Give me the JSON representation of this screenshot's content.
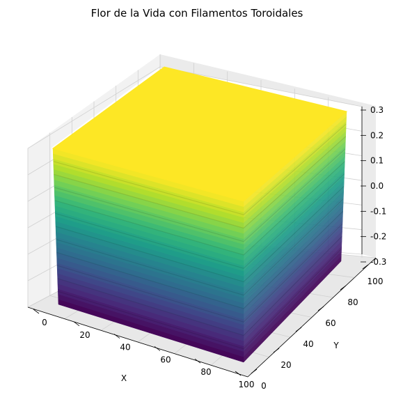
{
  "chart_data": {
    "type": "scatter",
    "projection": "3d",
    "title": "Flor de la Vida con Filamentos Toroidales",
    "xlabel": "X",
    "ylabel": "Y",
    "zlabel": "",
    "xlim": [
      0,
      100
    ],
    "ylim": [
      0,
      100
    ],
    "zlim": [
      -0.3,
      0.3
    ],
    "x_ticks": [
      0,
      20,
      40,
      60,
      80,
      100
    ],
    "y_ticks": [
      0,
      20,
      40,
      60,
      80,
      100
    ],
    "z_ticks": [
      "-0.3",
      "-0.2",
      "-0.1",
      "0.0",
      "0.1",
      "0.2",
      "0.3"
    ],
    "x_tick_labels": [
      "0",
      "20",
      "40",
      "60",
      "80",
      "100"
    ],
    "y_tick_labels": [
      "0",
      "20",
      "40",
      "60",
      "80",
      "100"
    ],
    "colormap": "viridis",
    "grid": true,
    "description_of_points": "dense grid of points filling x 0–100, y 0–100, z -0.3–0.3, colored by z",
    "color_scale": {
      "low": "#440154",
      "mid": "#21918c",
      "high": "#fde725"
    }
  }
}
